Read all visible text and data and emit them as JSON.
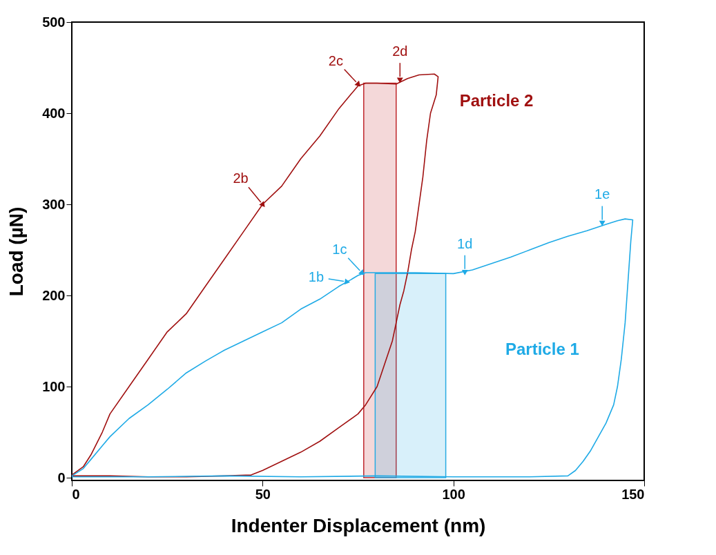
{
  "chart_data": {
    "type": "line",
    "xlabel": "Indenter Displacement (nm)",
    "ylabel": "Load (µN)",
    "xlim": [
      0,
      150
    ],
    "ylim": [
      -3,
      500
    ],
    "xticks": [
      0,
      50,
      100,
      150
    ],
    "yticks": [
      0,
      100,
      200,
      300,
      400,
      500
    ],
    "grid": false,
    "legend": false,
    "marker": "none",
    "line_style": "solid",
    "series": [
      {
        "type": "area",
        "color": "#c0282d",
        "x": [
          76.5,
          85
        ],
        "values": [
          433,
          433
        ]
      },
      {
        "type": "area",
        "color": "#29abe2",
        "x": [
          79.5,
          98
        ],
        "values": [
          224,
          224
        ]
      },
      {
        "name": "Particle 2",
        "color": "#a01010",
        "x": [
          0,
          3,
          5,
          8,
          10,
          15,
          20,
          25,
          30,
          35,
          40,
          45,
          50,
          55,
          60,
          65,
          70,
          73,
          75,
          77,
          80,
          85,
          88,
          91,
          95,
          96,
          95.5,
          94,
          93,
          92,
          91,
          90,
          89,
          88,
          87,
          86,
          85,
          84,
          82,
          80,
          77,
          75,
          70,
          65,
          60,
          55,
          50,
          47,
          40,
          30,
          20,
          10,
          0
        ],
        "values": [
          3,
          12,
          25,
          50,
          70,
          100,
          130,
          160,
          180,
          210,
          240,
          270,
          300,
          320,
          350,
          375,
          405,
          420,
          430,
          433,
          433,
          432,
          438,
          442,
          443,
          440,
          420,
          400,
          370,
          330,
          300,
          270,
          250,
          225,
          205,
          190,
          170,
          150,
          125,
          100,
          80,
          70,
          55,
          40,
          28,
          18,
          8,
          3,
          2,
          1,
          1,
          2,
          2
        ]
      },
      {
        "name": "Particle 1",
        "color": "#1eaae6",
        "x": [
          0,
          3,
          5,
          8,
          10,
          15,
          20,
          25,
          30,
          35,
          40,
          45,
          50,
          55,
          60,
          65,
          70,
          73,
          75,
          77,
          80,
          90,
          100,
          105,
          110,
          115,
          120,
          125,
          130,
          135,
          140,
          143,
          145,
          147,
          146.5,
          146,
          145.5,
          145,
          144.5,
          144,
          143,
          142,
          140,
          138,
          136,
          134,
          132,
          130,
          120,
          100,
          80,
          60,
          40,
          20,
          0
        ],
        "values": [
          2,
          10,
          20,
          35,
          45,
          65,
          80,
          97,
          115,
          128,
          140,
          150,
          160,
          170,
          185,
          196,
          210,
          217,
          222,
          225,
          225,
          225,
          224,
          228,
          235,
          242,
          250,
          258,
          265,
          271,
          278,
          282,
          284,
          283,
          260,
          230,
          200,
          170,
          150,
          130,
          100,
          80,
          60,
          45,
          30,
          18,
          8,
          2,
          1,
          1,
          2,
          1,
          2,
          1,
          1
        ]
      }
    ],
    "annotations": [
      {
        "text": "2b",
        "x": 50,
        "y": 300
      },
      {
        "text": "2c",
        "x": 75,
        "y": 432
      },
      {
        "text": "2d",
        "x": 86,
        "y": 437
      },
      {
        "text": "1b",
        "x": 72,
        "y": 215
      },
      {
        "text": "1c",
        "x": 76,
        "y": 225
      },
      {
        "text": "1d",
        "x": 103,
        "y": 226
      },
      {
        "text": "1e",
        "x": 139,
        "y": 280
      }
    ]
  }
}
